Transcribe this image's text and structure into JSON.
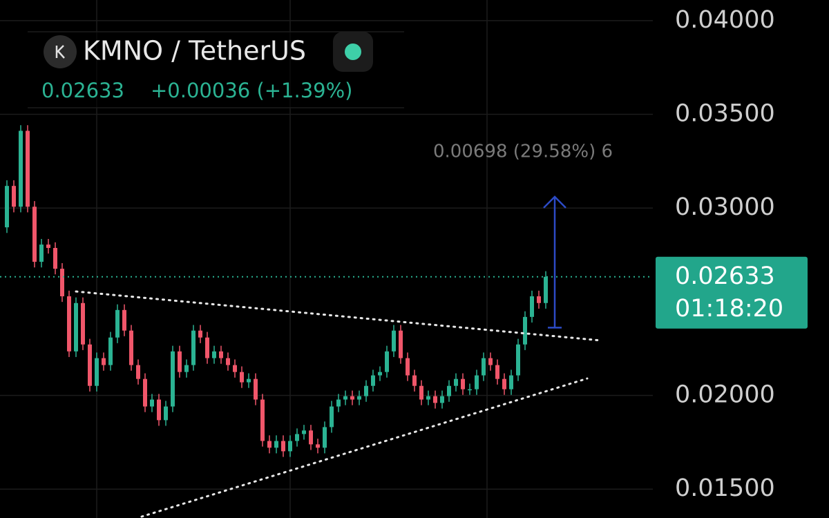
{
  "chart_data": {
    "type": "candlestick",
    "title": "KMNO / TetherUS",
    "price": 0.02633,
    "change": "+0.00036 (+1.39%)",
    "countdown": "01:18:20",
    "up_color": "#2bb393",
    "down_color": "#f0566a",
    "grid": true,
    "ylim": [
      0.01346,
      0.0411
    ],
    "yticks": [
      {
        "value": 0.04,
        "label": "0.04000"
      },
      {
        "value": 0.035,
        "label": "0.03500"
      },
      {
        "value": 0.03,
        "label": "0.03000"
      },
      {
        "value": 0.02,
        "label": "0.02000"
      },
      {
        "value": 0.015,
        "label": "0.01500"
      }
    ],
    "measure": {
      "from": 0.02362,
      "to": 0.0306,
      "label": "0.00698 (29.58%) 6"
    },
    "open": [
      0.02897,
      0.03118,
      0.03007,
      0.03412,
      0.03007,
      0.02713,
      0.02805,
      0.02787,
      0.02676,
      0.02529,
      0.02235,
      0.02493,
      0.02272,
      0.02051,
      0.02199,
      0.02162,
      0.02309,
      0.02456,
      0.02346,
      0.02162,
      0.02088,
      0.01941,
      0.01978,
      0.01868,
      0.01941,
      0.02235,
      0.02125,
      0.02162,
      0.02346,
      0.02309,
      0.02199,
      0.02235,
      0.02199,
      0.02162,
      0.02125,
      0.0207,
      0.02088,
      0.01978,
      0.01757,
      0.01721,
      0.01757,
      0.01702,
      0.01757,
      0.01794,
      0.01813,
      0.01739,
      0.01721,
      0.01831,
      0.01941,
      0.01978,
      0.01996,
      0.01978,
      0.01996,
      0.02051,
      0.02107,
      0.02125,
      0.02235,
      0.02346,
      0.02199,
      0.02107,
      0.02051,
      0.01978,
      0.01996,
      0.0196,
      0.01996,
      0.02051,
      0.02088,
      0.02033,
      0.02033,
      0.02107,
      0.02199,
      0.02162,
      0.02088,
      0.02033,
      0.02107,
      0.02272,
      0.02419,
      0.02529,
      0.02493
    ],
    "high": [
      0.03148,
      0.03148,
      0.03442,
      0.03442,
      0.03037,
      0.02835,
      0.02835,
      0.02817,
      0.02706,
      0.02559,
      0.02523,
      0.02523,
      0.02302,
      0.02229,
      0.02229,
      0.02339,
      0.02486,
      0.02486,
      0.02376,
      0.02192,
      0.02118,
      0.02008,
      0.02008,
      0.01971,
      0.02265,
      0.02265,
      0.02192,
      0.02376,
      0.02376,
      0.02339,
      0.02265,
      0.02265,
      0.02229,
      0.02192,
      0.02155,
      0.02118,
      0.02118,
      0.02008,
      0.01787,
      0.01787,
      0.01787,
      0.01787,
      0.01824,
      0.01843,
      0.01843,
      0.01769,
      0.01861,
      0.01971,
      0.02008,
      0.02026,
      0.02026,
      0.02026,
      0.02081,
      0.02137,
      0.02155,
      0.02265,
      0.02376,
      0.02376,
      0.02229,
      0.02137,
      0.02081,
      0.02026,
      0.02026,
      0.02026,
      0.02081,
      0.02118,
      0.02118,
      0.02063,
      0.02137,
      0.02229,
      0.02229,
      0.02192,
      0.02118,
      0.02137,
      0.02302,
      0.02449,
      0.02559,
      0.02559,
      0.02663
    ],
    "low": [
      0.02867,
      0.02977,
      0.02977,
      0.02977,
      0.02683,
      0.02683,
      0.02757,
      0.02646,
      0.02499,
      0.02205,
      0.02205,
      0.02242,
      0.02021,
      0.02021,
      0.02132,
      0.02132,
      0.02279,
      0.02316,
      0.02132,
      0.02058,
      0.01911,
      0.01911,
      0.01838,
      0.01838,
      0.01911,
      0.02095,
      0.02095,
      0.02132,
      0.02279,
      0.02169,
      0.02169,
      0.02169,
      0.02132,
      0.02095,
      0.0204,
      0.0204,
      0.01948,
      0.01727,
      0.01691,
      0.01691,
      0.01672,
      0.01672,
      0.01727,
      0.01764,
      0.01709,
      0.01691,
      0.01691,
      0.01801,
      0.01911,
      0.01948,
      0.01948,
      0.01948,
      0.01966,
      0.02021,
      0.02077,
      0.02095,
      0.02205,
      0.02169,
      0.02077,
      0.02021,
      0.01948,
      0.01948,
      0.0193,
      0.0193,
      0.01966,
      0.02021,
      0.02003,
      0.02003,
      0.02003,
      0.02077,
      0.02132,
      0.02058,
      0.02003,
      0.02003,
      0.02077,
      0.02242,
      0.02389,
      0.02463,
      0.02463
    ],
    "close": [
      0.03118,
      0.03007,
      0.03412,
      0.03007,
      0.02713,
      0.02805,
      0.02787,
      0.02676,
      0.02529,
      0.02235,
      0.02493,
      0.02272,
      0.02051,
      0.02199,
      0.02162,
      0.02309,
      0.02456,
      0.02346,
      0.02162,
      0.02088,
      0.01941,
      0.01978,
      0.01868,
      0.01941,
      0.02235,
      0.02125,
      0.02162,
      0.02346,
      0.02309,
      0.02199,
      0.02235,
      0.02199,
      0.02162,
      0.02125,
      0.0207,
      0.02088,
      0.01978,
      0.01757,
      0.01721,
      0.01757,
      0.01702,
      0.01757,
      0.01794,
      0.01813,
      0.01739,
      0.01721,
      0.01831,
      0.01941,
      0.01978,
      0.01996,
      0.01978,
      0.01996,
      0.02051,
      0.02107,
      0.02125,
      0.02235,
      0.02346,
      0.02199,
      0.02107,
      0.02051,
      0.01978,
      0.01996,
      0.0196,
      0.01996,
      0.02051,
      0.02088,
      0.02033,
      0.02033,
      0.02107,
      0.02199,
      0.02162,
      0.02088,
      0.02033,
      0.02107,
      0.02272,
      0.02419,
      0.02529,
      0.02493,
      0.02633
    ]
  }
}
